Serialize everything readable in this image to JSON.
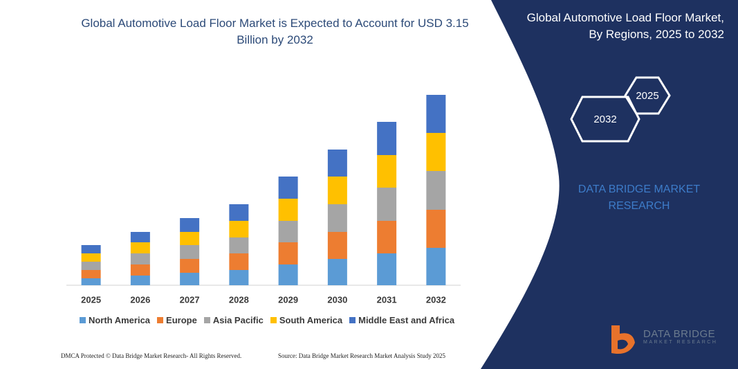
{
  "chart_data": {
    "type": "bar",
    "stacked": true,
    "title": "Global Automotive Load Floor Market is Expected to Account for USD 3.15 Billion by 2032",
    "categories": [
      "2025",
      "2026",
      "2027",
      "2028",
      "2029",
      "2030",
      "2031",
      "2032"
    ],
    "series": [
      {
        "name": "North America",
        "color": "#5b9bd5",
        "values": [
          10,
          14,
          18,
          22,
          30,
          38,
          46,
          54
        ]
      },
      {
        "name": "Europe",
        "color": "#ed7d31",
        "values": [
          12,
          16,
          20,
          24,
          32,
          39,
          47,
          55
        ]
      },
      {
        "name": "Asia Pacific",
        "color": "#a5a5a5",
        "values": [
          12,
          16,
          20,
          23,
          31,
          40,
          48,
          56
        ]
      },
      {
        "name": "South America",
        "color": "#ffc000",
        "values": [
          12,
          16,
          19,
          24,
          32,
          40,
          47,
          55
        ]
      },
      {
        "name": "Middle East and Africa",
        "color": "#4472c4",
        "values": [
          12,
          15,
          20,
          24,
          32,
          39,
          48,
          55
        ]
      }
    ]
  },
  "panel": {
    "title": [
      "Global Automotive Load Floor Market,",
      "By Regions, 2025 to 2032"
    ],
    "hexagons": [
      "2025",
      "2032"
    ],
    "brand": [
      "DATA BRIDGE MARKET",
      "RESEARCH"
    ]
  },
  "footer": {
    "left": "DMCA Protected © Data Bridge Market Research- All Rights Reserved.",
    "right": "Source: Data Bridge Market Research Market Analysis Study 2025"
  },
  "logo": {
    "name": "DATA BRIDGE",
    "tagline": "MARKET RESEARCH"
  }
}
